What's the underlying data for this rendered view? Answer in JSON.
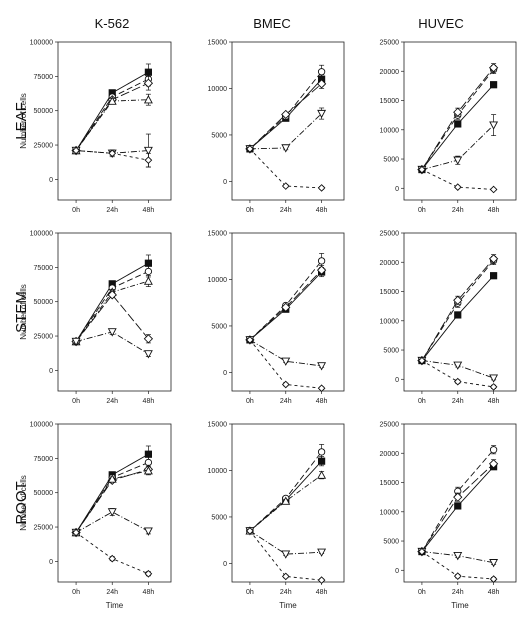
{
  "chart_data": {
    "type": "line",
    "column_titles": [
      "K-562",
      "BMEC",
      "HUVEC"
    ],
    "row_titles": [
      "LEAF",
      "STEM",
      "ROOT"
    ],
    "x_tick_labels": [
      "0h",
      "24h",
      "48h"
    ],
    "xlabel": "Time",
    "ylabel": "Number of cells",
    "marker_styles": [
      "filled-square",
      "open-circle",
      "open-diamond",
      "open-triangle-up",
      "open-triangle-down",
      "open-diamond-small"
    ],
    "panels": [
      {
        "row": "LEAF",
        "column": "K-562",
        "ylim": [
          -15000,
          100000
        ],
        "yticks": [
          "0",
          "25000",
          "50000",
          "75000",
          "100000"
        ],
        "series": [
          {
            "marker": "filled-square",
            "values": [
              21000,
              63000,
              78000
            ],
            "err": [
              0,
              1500,
              6000
            ]
          },
          {
            "marker": "open-circle",
            "values": [
              21000,
              60000,
              73000
            ],
            "err": [
              0,
              1500,
              5000
            ]
          },
          {
            "marker": "open-diamond",
            "values": [
              21000,
              58000,
              70000
            ],
            "err": [
              0,
              1500,
              5000
            ]
          },
          {
            "marker": "open-triangle-up",
            "values": [
              21000,
              57000,
              58000
            ],
            "err": [
              0,
              2000,
              4000
            ]
          },
          {
            "marker": "open-triangle-down",
            "values": [
              21000,
              19000,
              21000
            ],
            "err": [
              0,
              2500,
              12000
            ]
          },
          {
            "marker": "open-diamond-small",
            "values": [
              21000,
              19000,
              14000
            ],
            "err": [
              0,
              1500,
              5000
            ]
          }
        ]
      },
      {
        "row": "LEAF",
        "column": "BMEC",
        "ylim": [
          -2000,
          15000
        ],
        "yticks": [
          "0",
          "5000",
          "10000",
          "15000"
        ],
        "series": [
          {
            "marker": "filled-square",
            "values": [
              3500,
              6800,
              11000
            ],
            "err": [
              0,
              200,
              500
            ]
          },
          {
            "marker": "open-circle",
            "values": [
              3500,
              7000,
              11800
            ],
            "err": [
              0,
              200,
              700
            ]
          },
          {
            "marker": "open-diamond",
            "values": [
              3500,
              7200,
              10500
            ],
            "err": [
              0,
              200,
              500
            ]
          },
          {
            "marker": "open-triangle-down",
            "values": [
              3500,
              3600,
              7300
            ],
            "err": [
              0,
              200,
              600
            ]
          },
          {
            "marker": "open-diamond-small",
            "values": [
              3500,
              -500,
              -700
            ],
            "err": [
              0,
              150,
              150
            ]
          }
        ]
      },
      {
        "row": "LEAF",
        "column": "HUVEC",
        "ylim": [
          -2000,
          25000
        ],
        "yticks": [
          "0",
          "5000",
          "10000",
          "15000",
          "20000",
          "25000"
        ],
        "series": [
          {
            "marker": "filled-square",
            "values": [
              3200,
              11000,
              17700
            ],
            "err": [
              0,
              500,
              500
            ]
          },
          {
            "marker": "open-circle",
            "values": [
              3200,
              12500,
              20300
            ],
            "err": [
              0,
              700,
              700
            ]
          },
          {
            "marker": "open-diamond",
            "values": [
              3200,
              13000,
              20600
            ],
            "err": [
              0,
              700,
              700
            ]
          },
          {
            "marker": "open-triangle-down",
            "values": [
              3200,
              4800,
              10800
            ],
            "err": [
              0,
              700,
              1800
            ]
          },
          {
            "marker": "open-diamond-small",
            "values": [
              3200,
              200,
              -200
            ],
            "err": [
              0,
              200,
              200
            ]
          }
        ]
      },
      {
        "row": "STEM",
        "column": "K-562",
        "ylim": [
          -15000,
          100000
        ],
        "yticks": [
          "0",
          "25000",
          "50000",
          "75000",
          "100000"
        ],
        "series": [
          {
            "marker": "filled-square",
            "values": [
              21000,
              63000,
              78000
            ],
            "err": [
              0,
              1500,
              6000
            ]
          },
          {
            "marker": "open-circle",
            "values": [
              21000,
              60000,
              72000
            ],
            "err": [
              0,
              1500,
              4000
            ]
          },
          {
            "marker": "open-triangle-up",
            "values": [
              21000,
              57000,
              65000
            ],
            "err": [
              0,
              2000,
              4000
            ]
          },
          {
            "marker": "open-diamond",
            "values": [
              21000,
              55000,
              23000
            ],
            "err": [
              0,
              2000,
              3000
            ]
          },
          {
            "marker": "open-triangle-down",
            "values": [
              21000,
              28000,
              12000
            ],
            "err": [
              0,
              2000,
              2000
            ]
          }
        ]
      },
      {
        "row": "STEM",
        "column": "BMEC",
        "ylim": [
          -2000,
          15000
        ],
        "yticks": [
          "0",
          "5000",
          "10000",
          "15000"
        ],
        "series": [
          {
            "marker": "filled-square",
            "values": [
              3500,
              6800,
              10800
            ],
            "err": [
              0,
              200,
              500
            ]
          },
          {
            "marker": "open-circle",
            "values": [
              3500,
              7200,
              12000
            ],
            "err": [
              0,
              200,
              800
            ]
          },
          {
            "marker": "open-diamond",
            "values": [
              3500,
              7000,
              11000
            ],
            "err": [
              0,
              200,
              500
            ]
          },
          {
            "marker": "open-triangle-down",
            "values": [
              3500,
              1200,
              700
            ],
            "err": [
              0,
              150,
              150
            ]
          },
          {
            "marker": "open-diamond-small",
            "values": [
              3500,
              -1300,
              -1700
            ],
            "err": [
              0,
              150,
              150
            ]
          }
        ]
      },
      {
        "row": "STEM",
        "column": "HUVEC",
        "ylim": [
          -2000,
          25000
        ],
        "yticks": [
          "0",
          "5000",
          "10000",
          "15000",
          "20000",
          "25000"
        ],
        "series": [
          {
            "marker": "filled-square",
            "values": [
              3200,
              11000,
              17700
            ],
            "err": [
              0,
              500,
              500
            ]
          },
          {
            "marker": "open-circle",
            "values": [
              3200,
              13000,
              20300
            ],
            "err": [
              0,
              700,
              700
            ]
          },
          {
            "marker": "open-diamond",
            "values": [
              3200,
              13500,
              20600
            ],
            "err": [
              0,
              700,
              700
            ]
          },
          {
            "marker": "open-triangle-down",
            "values": [
              3200,
              2400,
              200
            ],
            "err": [
              0,
              300,
              300
            ]
          },
          {
            "marker": "open-diamond-small",
            "values": [
              3200,
              -400,
              -1300
            ],
            "err": [
              0,
              300,
              300
            ]
          }
        ]
      },
      {
        "row": "ROOT",
        "column": "K-562",
        "ylim": [
          -15000,
          100000
        ],
        "yticks": [
          "0",
          "25000",
          "50000",
          "75000",
          "100000"
        ],
        "series": [
          {
            "marker": "filled-square",
            "values": [
              21000,
              63000,
              78000
            ],
            "err": [
              0,
              1500,
              6000
            ]
          },
          {
            "marker": "open-circle",
            "values": [
              21000,
              61000,
              72000
            ],
            "err": [
              0,
              1500,
              4000
            ]
          },
          {
            "marker": "open-diamond",
            "values": [
              21000,
              59000,
              67000
            ],
            "err": [
              0,
              1500,
              3000
            ]
          },
          {
            "marker": "open-triangle-up",
            "values": [
              21000,
              60000,
              66000
            ],
            "err": [
              0,
              1500,
              3000
            ]
          },
          {
            "marker": "open-triangle-down",
            "values": [
              21000,
              36000,
              22000
            ],
            "err": [
              0,
              2500,
              2000
            ]
          },
          {
            "marker": "open-diamond-small",
            "values": [
              21000,
              2000,
              -9000
            ],
            "err": [
              0,
              1500,
              1500
            ]
          }
        ]
      },
      {
        "row": "ROOT",
        "column": "BMEC",
        "ylim": [
          -2000,
          15000
        ],
        "yticks": [
          "0",
          "5000",
          "10000",
          "15000"
        ],
        "series": [
          {
            "marker": "filled-square",
            "values": [
              3500,
              6800,
              11000
            ],
            "err": [
              0,
              200,
              500
            ]
          },
          {
            "marker": "open-circle",
            "values": [
              3500,
              7000,
              12000
            ],
            "err": [
              0,
              200,
              800
            ]
          },
          {
            "marker": "open-triangle-up",
            "values": [
              3500,
              6700,
              9500
            ],
            "err": [
              0,
              200,
              400
            ]
          },
          {
            "marker": "open-triangle-down",
            "values": [
              3500,
              1000,
              1200
            ],
            "err": [
              0,
              150,
              150
            ]
          },
          {
            "marker": "open-diamond-small",
            "values": [
              3500,
              -1400,
              -1800
            ],
            "err": [
              0,
              150,
              150
            ]
          }
        ]
      },
      {
        "row": "ROOT",
        "column": "HUVEC",
        "ylim": [
          -2000,
          25000
        ],
        "yticks": [
          "0",
          "5000",
          "10000",
          "15000",
          "20000",
          "25000"
        ],
        "series": [
          {
            "marker": "filled-square",
            "values": [
              3200,
              11000,
              17700
            ],
            "err": [
              0,
              500,
              500
            ]
          },
          {
            "marker": "open-circle",
            "values": [
              3200,
              13500,
              20600
            ],
            "err": [
              0,
              700,
              700
            ]
          },
          {
            "marker": "open-diamond",
            "values": [
              3200,
              12500,
              18200
            ],
            "err": [
              0,
              700,
              700
            ]
          },
          {
            "marker": "open-triangle-down",
            "values": [
              3200,
              2500,
              1300
            ],
            "err": [
              0,
              300,
              300
            ]
          },
          {
            "marker": "open-diamond-small",
            "values": [
              3200,
              -1000,
              -1500
            ],
            "err": [
              0,
              300,
              300
            ]
          }
        ]
      }
    ]
  }
}
